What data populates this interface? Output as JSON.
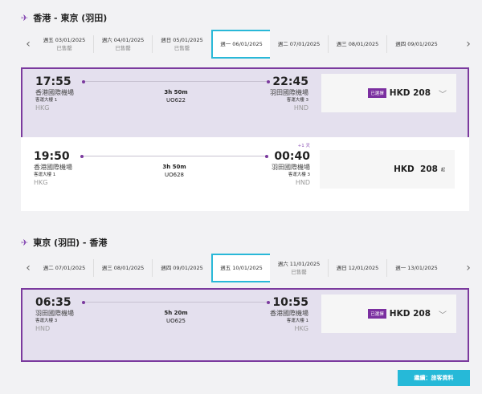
{
  "outbound": {
    "title": "香港 - 東京 (羽田)",
    "icon": "plane-takeoff-icon",
    "dates": [
      {
        "label": "週五 03/01/2025",
        "sub": "已售罄"
      },
      {
        "label": "週六 04/01/2025",
        "sub": "已售罄"
      },
      {
        "label": "週日 05/01/2025",
        "sub": "已售罄"
      },
      {
        "label": "週一 06/01/2025",
        "sub": "",
        "selected": true
      },
      {
        "label": "週二 07/01/2025",
        "sub": ""
      },
      {
        "label": "週三 08/01/2025",
        "sub": ""
      },
      {
        "label": "週四 09/01/2025",
        "sub": ""
      }
    ],
    "flights": [
      {
        "dep_time": "17:55",
        "dep_airport": "香港國際機場",
        "dep_terminal": "客運大樓 1",
        "dep_code": "HKG",
        "arr_time": "22:45",
        "arr_airport": "羽田國際機場",
        "arr_terminal": "客運大樓 3",
        "arr_code": "HND",
        "duration": "3h 50m",
        "flight_no": "UO622",
        "badge": "已選擇",
        "price": "HKD 208",
        "day_offset": "",
        "selected": true
      },
      {
        "dep_time": "19:50",
        "dep_airport": "香港國際機場",
        "dep_terminal": "客運大樓 1",
        "dep_code": "HKG",
        "arr_time": "00:40",
        "arr_airport": "羽田國際機場",
        "arr_terminal": "客運大樓 3",
        "arr_code": "HND",
        "duration": "3h 50m",
        "flight_no": "UO628",
        "badge": "",
        "price": "HKD  208",
        "price_suffix": "起",
        "day_offset": "+1 天",
        "selected": false
      }
    ]
  },
  "inbound": {
    "title": "東京 (羽田) - 香港",
    "icon": "plane-landing-icon",
    "dates": [
      {
        "label": "週二 07/01/2025",
        "sub": ""
      },
      {
        "label": "週三 08/01/2025",
        "sub": ""
      },
      {
        "label": "週四 09/01/2025",
        "sub": ""
      },
      {
        "label": "週五 10/01/2025",
        "sub": "",
        "selected": true
      },
      {
        "label": "週六 11/01/2025",
        "sub": "已售罄"
      },
      {
        "label": "週日 12/01/2025",
        "sub": ""
      },
      {
        "label": "週一 13/01/2025",
        "sub": ""
      }
    ],
    "flights": [
      {
        "dep_time": "06:35",
        "dep_airport": "羽田國際機場",
        "dep_terminal": "客運大樓 3",
        "dep_code": "HND",
        "arr_time": "10:55",
        "arr_airport": "香港國際機場",
        "arr_terminal": "客運大樓 1",
        "arr_code": "HKG",
        "duration": "5h 20m",
        "flight_no": "UO625",
        "badge": "已選擇",
        "price": "HKD 208",
        "day_offset": "",
        "selected": true
      }
    ]
  },
  "continue_label": "繼續：旅客資料",
  "colors": {
    "accent": "#7b3a9e",
    "selected_bg": "#e4e0ee",
    "date_highlight": "#29b8d8",
    "button": "#26b9d8"
  }
}
